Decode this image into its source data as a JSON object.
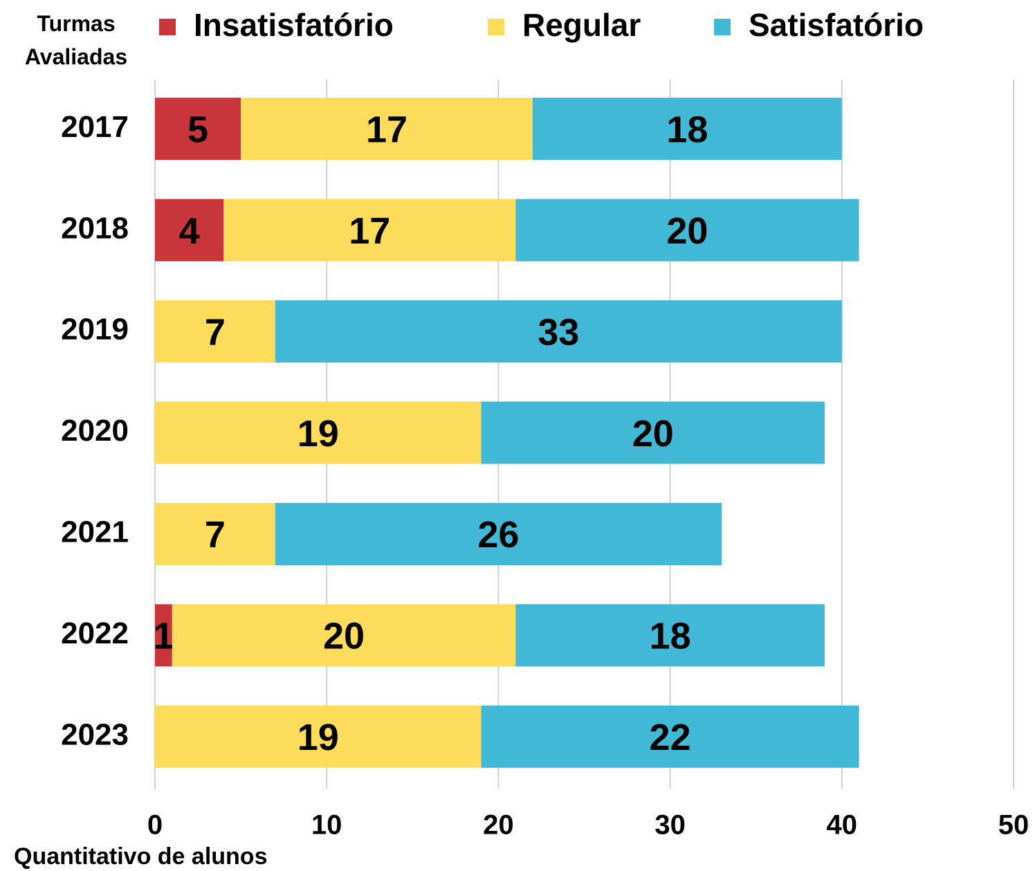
{
  "chart_data": {
    "type": "stacked_barh",
    "y_label": "Turmas Avaliadas",
    "x_label": "Quantitativo de alunos",
    "categories": [
      "2017",
      "2018",
      "2019",
      "2020",
      "2021",
      "2022",
      "2023"
    ],
    "series": [
      {
        "name": "Insatisfatório",
        "color": "#c8353a",
        "values": [
          5,
          4,
          null,
          null,
          null,
          1,
          null
        ]
      },
      {
        "name": "Regular",
        "color": "#fddc5c",
        "values": [
          17,
          17,
          7,
          19,
          7,
          20,
          19
        ]
      },
      {
        "name": "Satisfatório",
        "color": "#41b8d6",
        "values": [
          18,
          20,
          33,
          20,
          26,
          18,
          22
        ]
      }
    ],
    "xlim": [
      0,
      50
    ],
    "xticks": [
      0,
      10,
      20,
      30,
      40,
      50
    ],
    "grid": true,
    "legend": "top"
  }
}
